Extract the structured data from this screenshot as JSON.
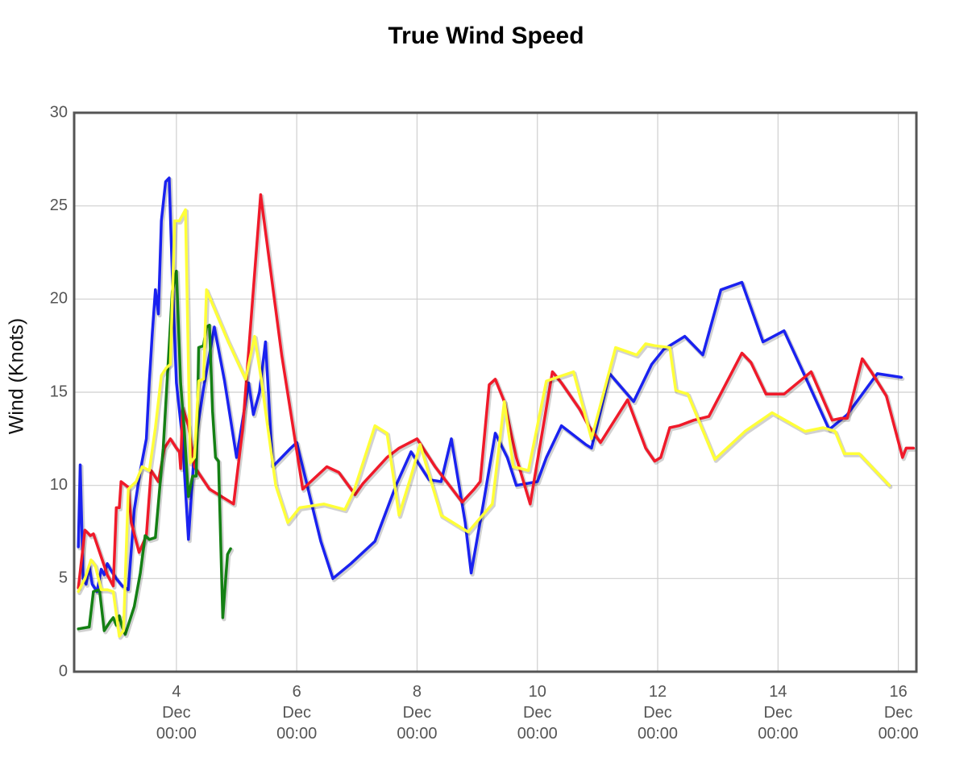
{
  "chart_data": {
    "type": "line",
    "title": "True Wind Speed",
    "xlabel": "",
    "ylabel": "Wind (Knots)",
    "ylim": [
      0,
      30
    ],
    "xlim": [
      2.3,
      16.3
    ],
    "x_unit": "Dec (day of month, 00:00 = midnight)",
    "grid": true,
    "legend": "none",
    "y_ticks": [
      0,
      5,
      10,
      15,
      20,
      25,
      30
    ],
    "x_ticks": [
      {
        "value": 4,
        "day": "4",
        "month": "Dec",
        "time": "00:00"
      },
      {
        "value": 6,
        "day": "6",
        "month": "Dec",
        "time": "00:00"
      },
      {
        "value": 8,
        "day": "8",
        "month": "Dec",
        "time": "00:00"
      },
      {
        "value": 10,
        "day": "10",
        "month": "Dec",
        "time": "00:00"
      },
      {
        "value": 12,
        "day": "12",
        "month": "Dec",
        "time": "00:00"
      },
      {
        "value": 14,
        "day": "14",
        "month": "Dec",
        "time": "00:00"
      },
      {
        "value": 16,
        "day": "16",
        "month": "Dec",
        "time": "00:00"
      }
    ],
    "series": [
      {
        "color": "#1a22f0",
        "points": [
          [
            2.37,
            6.7
          ],
          [
            2.4,
            11.1
          ],
          [
            2.45,
            5
          ],
          [
            2.5,
            4.7
          ],
          [
            2.55,
            5.7
          ],
          [
            2.6,
            4.7
          ],
          [
            2.68,
            4.3
          ],
          [
            2.75,
            5.5
          ],
          [
            2.8,
            5.2
          ],
          [
            2.85,
            5.8
          ],
          [
            2.92,
            5.4
          ],
          [
            3.0,
            5.0
          ],
          [
            3.1,
            4.6
          ],
          [
            3.2,
            4.4
          ],
          [
            3.3,
            8.7
          ],
          [
            3.4,
            10.8
          ],
          [
            3.5,
            12.5
          ],
          [
            3.55,
            15.6
          ],
          [
            3.6,
            18.2
          ],
          [
            3.65,
            20.5
          ],
          [
            3.7,
            19.2
          ],
          [
            3.75,
            24.2
          ],
          [
            3.82,
            26.3
          ],
          [
            3.88,
            26.5
          ],
          [
            3.94,
            20.5
          ],
          [
            4.0,
            15.5
          ],
          [
            4.1,
            12.5
          ],
          [
            4.2,
            7.1
          ],
          [
            4.3,
            12.0
          ],
          [
            4.45,
            15.2
          ],
          [
            4.63,
            18.5
          ],
          [
            4.8,
            15.6
          ],
          [
            5.0,
            11.5
          ],
          [
            5.2,
            15.5
          ],
          [
            5.28,
            13.8
          ],
          [
            5.38,
            15.0
          ],
          [
            5.48,
            17.7
          ],
          [
            5.6,
            11.0
          ],
          [
            5.9,
            12.0
          ],
          [
            6.0,
            12.3
          ],
          [
            6.4,
            7.0
          ],
          [
            6.6,
            5.0
          ],
          [
            6.9,
            5.8
          ],
          [
            7.3,
            7.0
          ],
          [
            7.65,
            10.0
          ],
          [
            7.9,
            11.8
          ],
          [
            8.2,
            10.3
          ],
          [
            8.4,
            10.2
          ],
          [
            8.57,
            12.5
          ],
          [
            8.8,
            8.0
          ],
          [
            8.9,
            5.3
          ],
          [
            9.1,
            9.0
          ],
          [
            9.3,
            12.8
          ],
          [
            9.5,
            11.5
          ],
          [
            9.65,
            10.0
          ],
          [
            10.0,
            10.2
          ],
          [
            10.15,
            11.5
          ],
          [
            10.4,
            13.2
          ],
          [
            10.8,
            12.2
          ],
          [
            10.9,
            12.0
          ],
          [
            11.2,
            16.0
          ],
          [
            11.6,
            14.5
          ],
          [
            11.9,
            16.5
          ],
          [
            12.1,
            17.3
          ],
          [
            12.45,
            18.0
          ],
          [
            12.75,
            17.0
          ],
          [
            13.05,
            20.5
          ],
          [
            13.4,
            20.9
          ],
          [
            13.75,
            17.7
          ],
          [
            14.1,
            18.3
          ],
          [
            14.5,
            15.5
          ],
          [
            14.85,
            13.0
          ],
          [
            15.15,
            13.8
          ],
          [
            15.65,
            16.0
          ],
          [
            16.05,
            15.8
          ]
        ]
      },
      {
        "color": "#f01a2a",
        "points": [
          [
            2.37,
            4.5
          ],
          [
            2.48,
            7.6
          ],
          [
            2.57,
            7.3
          ],
          [
            2.62,
            7.4
          ],
          [
            2.85,
            5.2
          ],
          [
            2.95,
            4.6
          ],
          [
            3.0,
            8.8
          ],
          [
            3.05,
            8.8
          ],
          [
            3.08,
            10.2
          ],
          [
            3.2,
            9.9
          ],
          [
            3.25,
            8.0
          ],
          [
            3.38,
            6.4
          ],
          [
            3.5,
            7.3
          ],
          [
            3.58,
            10.8
          ],
          [
            3.7,
            10.2
          ],
          [
            3.8,
            12.0
          ],
          [
            3.9,
            12.5
          ],
          [
            4.0,
            12.0
          ],
          [
            4.05,
            11.8
          ],
          [
            4.07,
            10.9
          ],
          [
            4.1,
            14.2
          ],
          [
            4.2,
            13.2
          ],
          [
            4.3,
            11.0
          ],
          [
            4.55,
            9.8
          ],
          [
            4.95,
            9.0
          ],
          [
            5.1,
            13.0
          ],
          [
            5.4,
            25.6
          ],
          [
            5.75,
            17.0
          ],
          [
            6.1,
            9.8
          ],
          [
            6.5,
            11.0
          ],
          [
            6.7,
            10.7
          ],
          [
            6.97,
            9.5
          ],
          [
            7.1,
            10.1
          ],
          [
            7.5,
            11.5
          ],
          [
            7.7,
            12.0
          ],
          [
            8.0,
            12.5
          ],
          [
            8.3,
            11.0
          ],
          [
            8.75,
            9.1
          ],
          [
            8.95,
            9.8
          ],
          [
            9.05,
            10.2
          ],
          [
            9.2,
            15.4
          ],
          [
            9.3,
            15.7
          ],
          [
            9.45,
            14.5
          ],
          [
            9.65,
            11.5
          ],
          [
            9.88,
            9.0
          ],
          [
            10.25,
            16.1
          ],
          [
            10.4,
            15.5
          ],
          [
            10.7,
            14.1
          ],
          [
            10.85,
            13.2
          ],
          [
            11.05,
            12.3
          ],
          [
            11.5,
            14.6
          ],
          [
            11.8,
            12.0
          ],
          [
            11.95,
            11.3
          ],
          [
            12.05,
            11.5
          ],
          [
            12.2,
            13.1
          ],
          [
            12.35,
            13.2
          ],
          [
            12.6,
            13.5
          ],
          [
            12.85,
            13.7
          ],
          [
            13.4,
            17.1
          ],
          [
            13.55,
            16.6
          ],
          [
            13.8,
            14.9
          ],
          [
            14.1,
            14.9
          ],
          [
            14.55,
            16.1
          ],
          [
            14.9,
            13.5
          ],
          [
            15.05,
            13.6
          ],
          [
            15.15,
            13.6
          ],
          [
            15.4,
            16.8
          ],
          [
            15.55,
            16.1
          ],
          [
            15.8,
            14.8
          ],
          [
            16.07,
            11.5
          ],
          [
            16.13,
            12.0
          ],
          [
            16.25,
            12.0
          ]
        ]
      },
      {
        "color": "#148014",
        "points": [
          [
            2.37,
            2.3
          ],
          [
            2.55,
            2.4
          ],
          [
            2.62,
            4.3
          ],
          [
            2.72,
            4.4
          ],
          [
            2.8,
            2.2
          ],
          [
            2.9,
            2.7
          ],
          [
            2.95,
            2.9
          ],
          [
            3.0,
            2.5
          ],
          [
            3.05,
            3.0
          ],
          [
            3.1,
            2.4
          ],
          [
            3.15,
            2.0
          ],
          [
            3.3,
            3.5
          ],
          [
            3.4,
            5.3
          ],
          [
            3.48,
            7.3
          ],
          [
            3.55,
            7.1
          ],
          [
            3.65,
            7.2
          ],
          [
            3.78,
            12.0
          ],
          [
            3.88,
            17.5
          ],
          [
            3.93,
            20.4
          ],
          [
            4.0,
            21.5
          ],
          [
            4.07,
            15.5
          ],
          [
            4.13,
            13.0
          ],
          [
            4.2,
            9.4
          ],
          [
            4.27,
            10.5
          ],
          [
            4.33,
            10.5
          ],
          [
            4.37,
            17.4
          ],
          [
            4.45,
            17.5
          ],
          [
            4.5,
            18.5
          ],
          [
            4.55,
            18.6
          ],
          [
            4.6,
            14.0
          ],
          [
            4.65,
            11.5
          ],
          [
            4.7,
            11.3
          ],
          [
            4.77,
            2.9
          ],
          [
            4.85,
            6.3
          ],
          [
            4.9,
            6.6
          ]
        ]
      },
      {
        "color": "#ffff38",
        "points": [
          [
            2.37,
            4.3
          ],
          [
            2.48,
            5.0
          ],
          [
            2.58,
            6.0
          ],
          [
            2.65,
            5.7
          ],
          [
            2.75,
            4.4
          ],
          [
            2.85,
            4.4
          ],
          [
            2.95,
            4.3
          ],
          [
            3.05,
            1.9
          ],
          [
            3.12,
            2.2
          ],
          [
            3.2,
            9.8
          ],
          [
            3.33,
            10.2
          ],
          [
            3.43,
            11.0
          ],
          [
            3.55,
            10.8
          ],
          [
            3.65,
            13.1
          ],
          [
            3.75,
            15.9
          ],
          [
            3.83,
            16.3
          ],
          [
            3.9,
            16.5
          ],
          [
            3.97,
            24.2
          ],
          [
            4.05,
            24.2
          ],
          [
            4.15,
            24.8
          ],
          [
            4.23,
            11.2
          ],
          [
            4.3,
            11.5
          ],
          [
            4.37,
            15.6
          ],
          [
            4.45,
            15.7
          ],
          [
            4.5,
            20.5
          ],
          [
            4.85,
            17.8
          ],
          [
            5.15,
            15.7
          ],
          [
            5.3,
            18.0
          ],
          [
            5.4,
            15.9
          ],
          [
            5.65,
            10.0
          ],
          [
            5.85,
            8.0
          ],
          [
            6.05,
            8.8
          ],
          [
            6.45,
            9.0
          ],
          [
            6.8,
            8.7
          ],
          [
            6.95,
            9.7
          ],
          [
            7.3,
            13.2
          ],
          [
            7.5,
            12.8
          ],
          [
            7.7,
            8.4
          ],
          [
            7.9,
            10.5
          ],
          [
            8.05,
            12.2
          ],
          [
            8.4,
            8.4
          ],
          [
            8.85,
            7.5
          ],
          [
            9.25,
            9.0
          ],
          [
            9.45,
            14.5
          ],
          [
            9.6,
            11.0
          ],
          [
            9.85,
            10.8
          ],
          [
            10.15,
            15.6
          ],
          [
            10.6,
            16.1
          ],
          [
            10.9,
            12.5
          ],
          [
            11.3,
            17.4
          ],
          [
            11.65,
            17.0
          ],
          [
            11.8,
            17.6
          ],
          [
            11.95,
            17.5
          ],
          [
            12.2,
            17.4
          ],
          [
            12.3,
            15.1
          ],
          [
            12.5,
            14.9
          ],
          [
            12.95,
            11.4
          ],
          [
            13.45,
            12.9
          ],
          [
            13.9,
            13.9
          ],
          [
            14.45,
            12.9
          ],
          [
            14.75,
            13.1
          ],
          [
            14.95,
            12.9
          ],
          [
            15.1,
            11.7
          ],
          [
            15.35,
            11.7
          ],
          [
            15.85,
            10.0
          ]
        ]
      }
    ]
  }
}
